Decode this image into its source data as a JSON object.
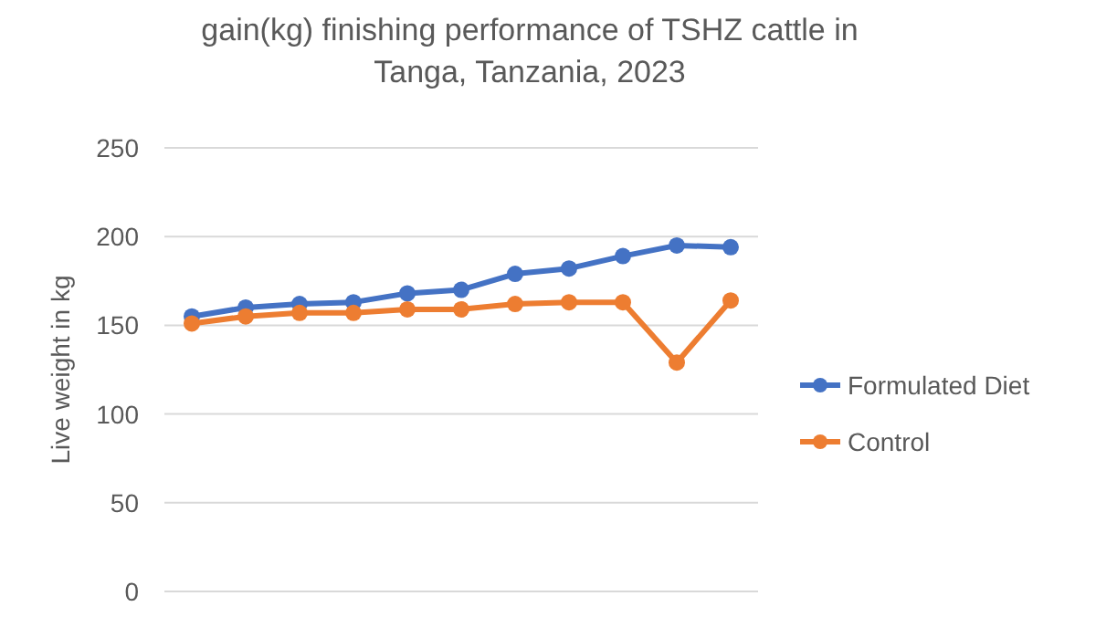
{
  "chart_data": {
    "type": "line",
    "title": "gain(kg) finishing performance of TSHZ cattle  in\nTanga, Tanzania, 2023",
    "ylabel": "Live weight in kg",
    "categories": [
      null,
      null,
      null,
      null,
      null,
      null,
      null,
      null,
      null,
      null,
      null
    ],
    "ylim": [
      0,
      250
    ],
    "yticks": [
      0,
      50,
      100,
      150,
      200,
      250
    ],
    "grid": "y",
    "legend": "right",
    "marker": "circle",
    "series": [
      {
        "name": "Formulated Diet",
        "color": "#4472c4",
        "values": [
          155,
          160,
          162,
          163,
          168,
          170,
          179,
          182,
          189,
          195,
          194
        ]
      },
      {
        "name": "Control",
        "color": "#ed7d31",
        "values": [
          151,
          155,
          157,
          157,
          159,
          159,
          162,
          163,
          163,
          129,
          164
        ]
      }
    ]
  }
}
